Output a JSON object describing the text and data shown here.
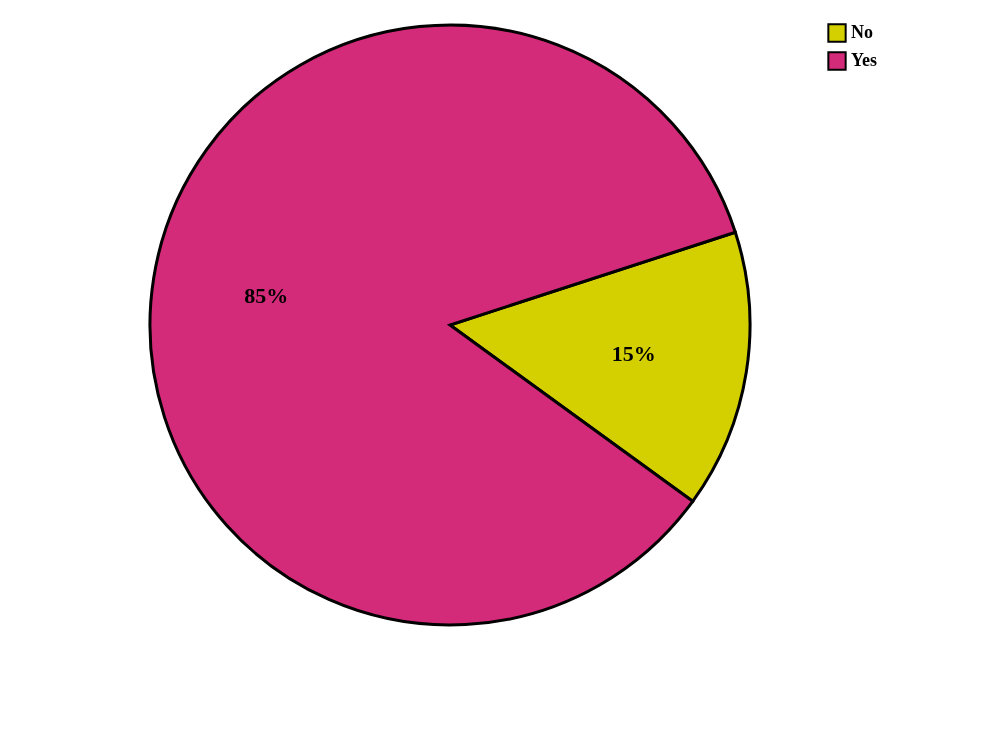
{
  "chart_data": {
    "type": "pie",
    "categories": [
      "No",
      "Yes"
    ],
    "values": [
      15,
      85
    ],
    "colors": [
      "#d4d000",
      "#d42a7a"
    ],
    "value_labels": [
      "15%",
      "85%"
    ],
    "legend": "top right"
  }
}
